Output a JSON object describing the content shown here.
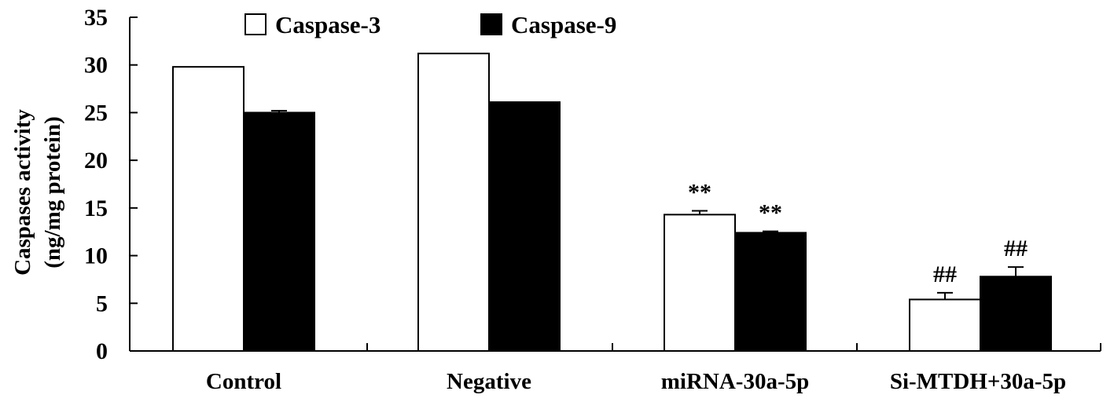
{
  "chart_data": {
    "type": "bar",
    "title": "",
    "xlabel": "",
    "ylabel_lines": [
      "Caspases activity",
      "(ng/mg protein)"
    ],
    "ylim": [
      0,
      35
    ],
    "yticks": [
      0,
      5,
      10,
      15,
      20,
      25,
      30,
      35
    ],
    "grid": false,
    "legend_position": "top-center",
    "categories": [
      "Control",
      "Negative",
      "miRNA-30a-5p",
      "Si-MTDH+30a-5p"
    ],
    "series": [
      {
        "name": "Caspase-3",
        "fill": "#ffffff",
        "values": [
          29.8,
          31.2,
          14.3,
          5.4
        ],
        "errors": [
          0,
          0,
          0.4,
          0.7
        ],
        "annotations": [
          "",
          "",
          "**",
          "##"
        ]
      },
      {
        "name": "Caspase-9",
        "fill": "#000000",
        "values": [
          25.0,
          26.1,
          12.4,
          7.8
        ],
        "errors": [
          0.2,
          0,
          0.15,
          1.0
        ],
        "annotations": [
          "",
          "",
          "**",
          "##"
        ]
      }
    ]
  }
}
